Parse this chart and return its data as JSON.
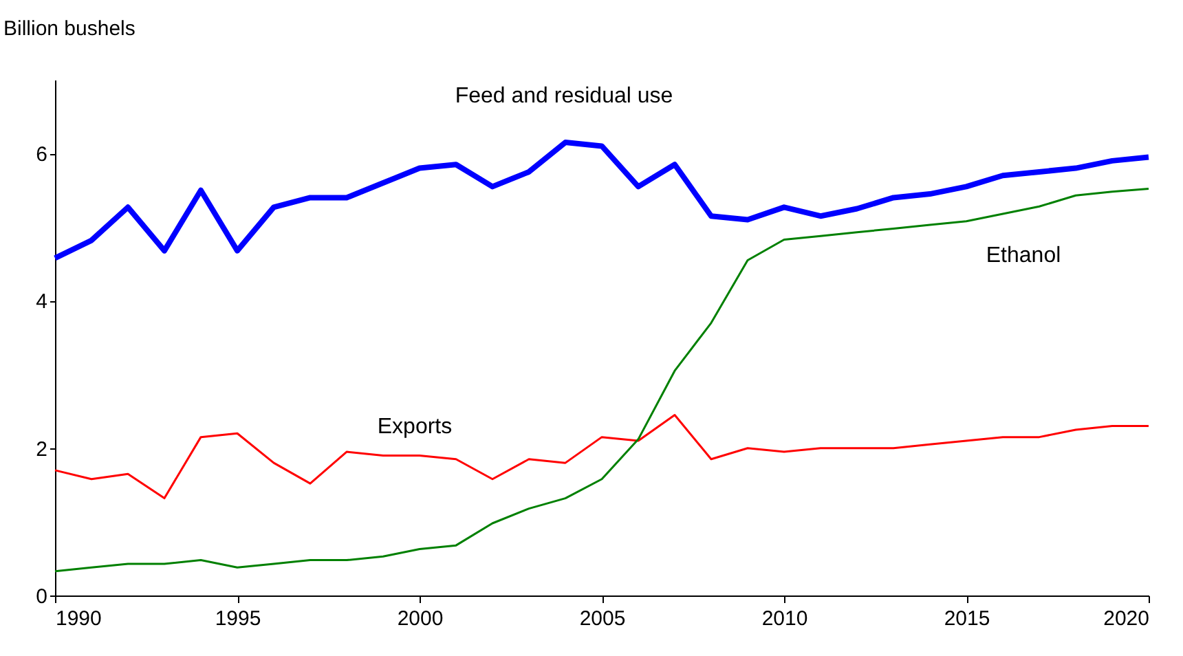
{
  "chart_data": {
    "type": "line",
    "ylabel": "Billion bushels",
    "x": [
      1990,
      1991,
      1992,
      1993,
      1994,
      1995,
      1996,
      1997,
      1998,
      1999,
      2000,
      2001,
      2002,
      2003,
      2004,
      2005,
      2006,
      2007,
      2008,
      2009,
      2010,
      2011,
      2012,
      2013,
      2014,
      2015,
      2016,
      2017,
      2018,
      2019,
      2020
    ],
    "series": [
      {
        "name": "Feed and residual use",
        "color": "#0000ff",
        "values": [
          4.58,
          4.82,
          5.27,
          4.68,
          5.5,
          4.68,
          5.27,
          5.4,
          5.4,
          5.6,
          5.8,
          5.85,
          5.55,
          5.75,
          6.15,
          6.1,
          5.55,
          5.85,
          5.15,
          5.1,
          5.27,
          5.15,
          5.25,
          5.4,
          5.45,
          5.55,
          5.7,
          5.75,
          5.8,
          5.9,
          5.95
        ]
      },
      {
        "name": "Exports",
        "color": "#ff0000",
        "values": [
          1.7,
          1.58,
          1.65,
          1.32,
          2.15,
          2.2,
          1.8,
          1.52,
          1.95,
          1.9,
          1.9,
          1.85,
          1.58,
          1.85,
          1.8,
          2.15,
          2.1,
          2.45,
          1.85,
          2.0,
          1.95,
          2.0,
          2.0,
          2.0,
          2.05,
          2.1,
          2.15,
          2.15,
          2.25,
          2.3,
          2.3
        ]
      },
      {
        "name": "Ethanol",
        "color": "#008000",
        "values": [
          0.33,
          0.38,
          0.43,
          0.43,
          0.48,
          0.38,
          0.43,
          0.48,
          0.48,
          0.53,
          0.63,
          0.68,
          0.98,
          1.18,
          1.32,
          1.58,
          2.12,
          3.05,
          3.7,
          4.55,
          4.83,
          4.88,
          4.93,
          4.98,
          5.03,
          5.08,
          5.18,
          5.28,
          5.43,
          5.48,
          5.52
        ]
      }
    ],
    "xlim": [
      1990,
      2020
    ],
    "xticks": [
      1990,
      1995,
      2000,
      2005,
      2010,
      2015,
      2020
    ],
    "ylim": [
      0,
      7
    ],
    "yticks": [
      0,
      2,
      4,
      6
    ],
    "grid": false,
    "marker": "none",
    "line_style": "solid"
  }
}
